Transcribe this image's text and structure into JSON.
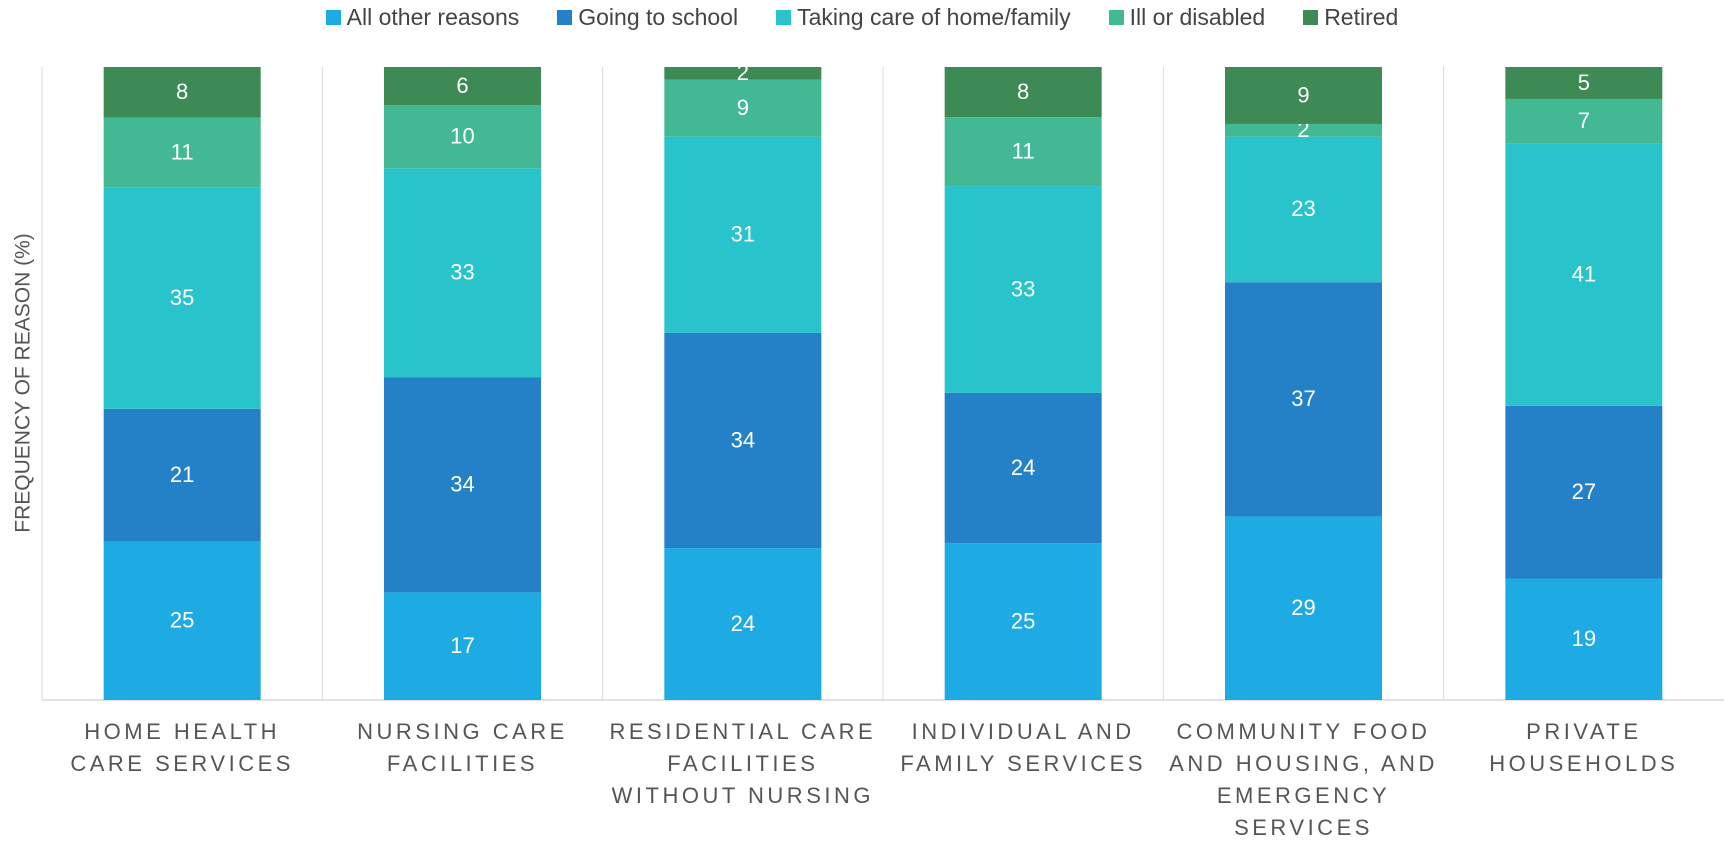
{
  "chart_data": {
    "type": "bar",
    "stacking": "percent",
    "y_label": "FREQUENCY OF REASON (%)",
    "categories": [
      "HOME HEALTH CARE SERVICES",
      "NURSING CARE FACILITIES",
      "RESIDENTIAL CARE FACILITIES WITHOUT NURSING",
      "INDIVIDUAL AND FAMILY SERVICES",
      "COMMUNITY FOOD AND HOUSING, AND EMERGENCY SERVICES",
      "PRIVATE HOUSEHOLDS"
    ],
    "series": [
      {
        "name": "All other reasons",
        "color": "#1eabe3",
        "values": [
          25,
          17,
          24,
          25,
          29,
          19
        ]
      },
      {
        "name": "Going to school",
        "color": "#2581c7",
        "values": [
          21,
          34,
          34,
          24,
          37,
          27
        ]
      },
      {
        "name": "Taking care of home/family",
        "color": "#29c3cb",
        "values": [
          35,
          33,
          31,
          33,
          23,
          41
        ]
      },
      {
        "name": "Ill or disabled",
        "color": "#43b993",
        "values": [
          11,
          10,
          9,
          11,
          2,
          7
        ]
      },
      {
        "name": "Retired",
        "color": "#3d8a55",
        "values": [
          8,
          6,
          2,
          8,
          9,
          5
        ]
      }
    ],
    "legend": "top"
  }
}
